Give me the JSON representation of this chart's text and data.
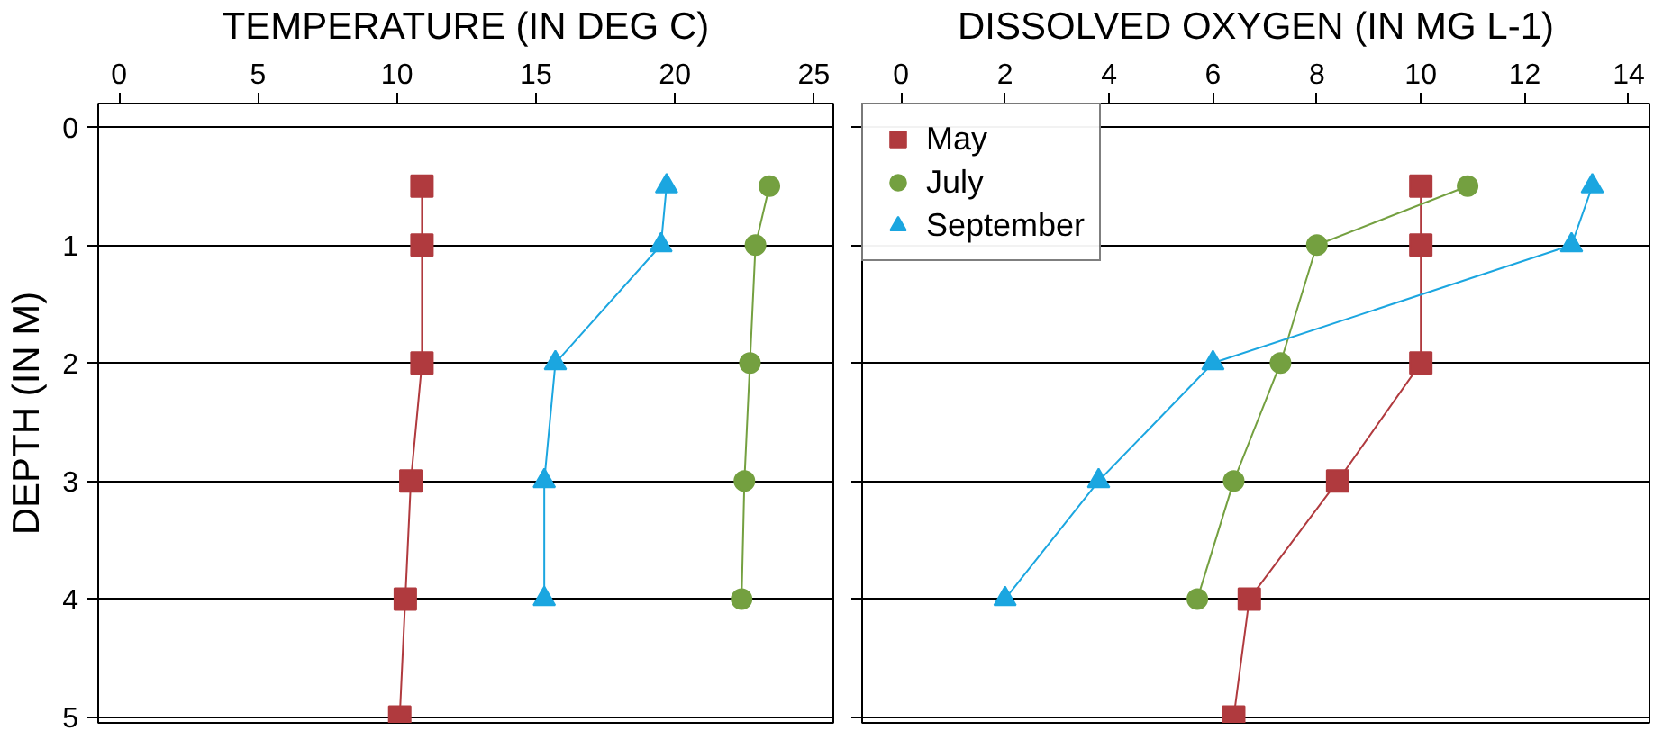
{
  "chart_data": [
    {
      "type": "line",
      "orientation": "horizontal",
      "xlabel": "TEMPERATURE (IN DEG C)",
      "ylabel": "DEPTH (IN M)",
      "xlim": [
        -0.75,
        25.7
      ],
      "xticks": [
        0,
        5,
        10,
        15,
        20,
        25
      ],
      "ylim": [
        5.05,
        -0.2
      ],
      "yticks": [
        0,
        1,
        2,
        3,
        4,
        5
      ],
      "grid": "y",
      "series": [
        {
          "color": "#b03a3e",
          "marker": "square",
          "x": [
            0.5,
            1,
            2,
            3,
            4,
            5
          ],
          "values": [
            10.9,
            10.9,
            10.9,
            10.5,
            10.3,
            10.1
          ]
        },
        {
          "color": "#74a040",
          "marker": "circle",
          "x": [
            0.5,
            1,
            2,
            3,
            4
          ],
          "values": [
            23.4,
            22.9,
            22.7,
            22.5,
            22.4
          ]
        },
        {
          "color": "#1ba6e0",
          "marker": "triangle",
          "x": [
            0.5,
            1,
            2,
            3,
            4
          ],
          "values": [
            19.7,
            19.5,
            15.7,
            15.3,
            15.3
          ]
        }
      ]
    },
    {
      "type": "line",
      "orientation": "horizontal",
      "xlabel": "DISSOLVED OXYGEN (IN MG L-1)",
      "xlim": [
        -0.75,
        14.4
      ],
      "xticks": [
        0,
        2,
        4,
        6,
        8,
        10,
        12,
        14
      ],
      "ylim": [
        5.05,
        -0.2
      ],
      "yticks": [
        0,
        1,
        2,
        3,
        4,
        5
      ],
      "grid": "y",
      "tick_labels": "x",
      "legend": "top left",
      "series": [
        {
          "name": "May",
          "color": "#b03a3e",
          "marker": "square",
          "x": [
            0.5,
            1,
            2,
            3,
            4,
            5
          ],
          "values": [
            10.0,
            10.0,
            10.0,
            8.4,
            6.7,
            6.4
          ]
        },
        {
          "name": "July",
          "color": "#74a040",
          "marker": "circle",
          "x": [
            0.5,
            1,
            2,
            3,
            4
          ],
          "values": [
            10.9,
            8.0,
            7.3,
            6.4,
            5.7
          ]
        },
        {
          "name": "September",
          "color": "#1ba6e0",
          "marker": "triangle",
          "x": [
            0.5,
            1,
            2,
            3,
            4
          ],
          "values": [
            13.3,
            12.9,
            6.0,
            3.8,
            2.0
          ]
        }
      ]
    }
  ]
}
